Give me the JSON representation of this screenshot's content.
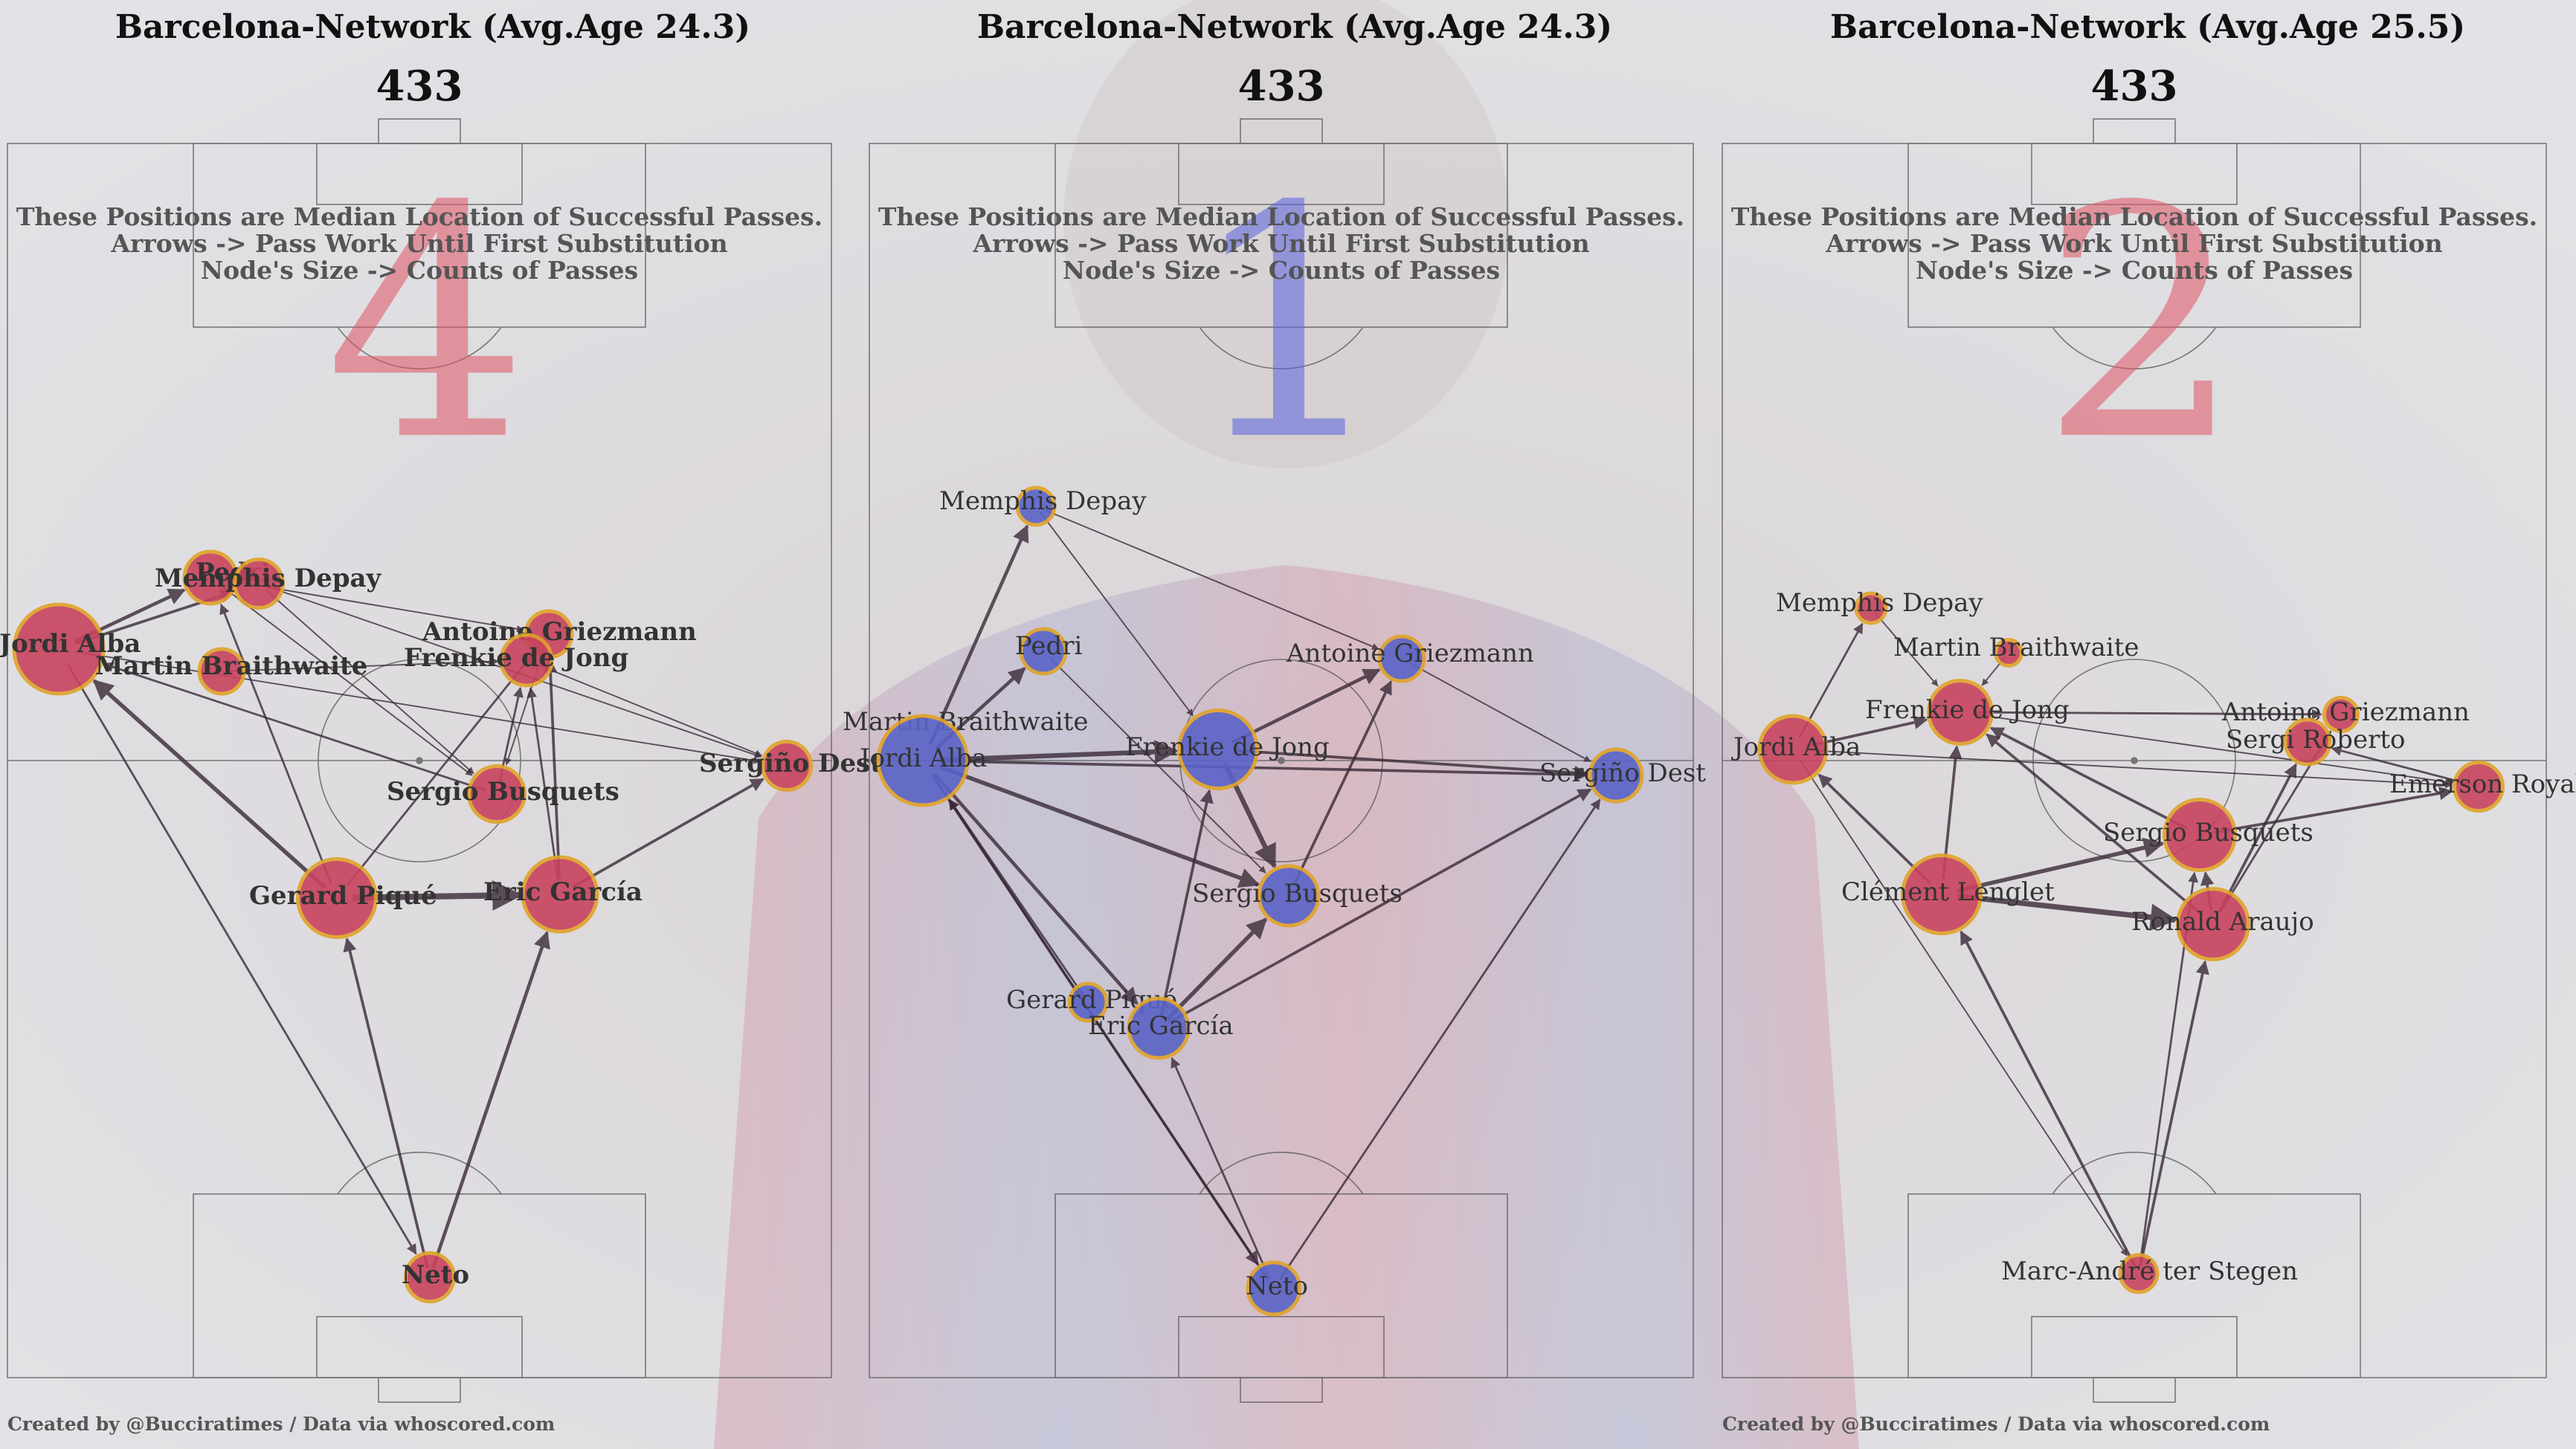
{
  "colors": {
    "red_team": "#c8435e",
    "blue_team": "#5a63c6",
    "node_ring": "#e0a32a",
    "edge": "#3a2a38"
  },
  "panels": [
    {
      "title": "Barcelona-Network (Avg.Age 24.3)",
      "formation": "433",
      "big_number": "4",
      "notes": [
        "These Positions are Median Location of Successful Passes.",
        "Arrows -> Pass Work Until First Substitution",
        "Node's Size -> Counts of Passes"
      ],
      "credit": "Created by @Bucciratimes / Data via whoscored.com",
      "node_color": "red_team",
      "bold_labels": true,
      "players": [
        {
          "name": "Jordi Alba",
          "size": 1.0
        },
        {
          "name": "Pedri",
          "size": 0.5
        },
        {
          "name": "Memphis Depay",
          "size": 0.45
        },
        {
          "name": "Martin Braithwaite",
          "size": 0.4
        },
        {
          "name": "Antoine Griezmann",
          "size": 0.42
        },
        {
          "name": "Frenkie de Jong",
          "size": 0.48
        },
        {
          "name": "Sergiño Dest",
          "size": 0.45
        },
        {
          "name": "Sergio Busquets",
          "size": 0.55
        },
        {
          "name": "Gerard Piqué",
          "size": 0.85
        },
        {
          "name": "Eric García",
          "size": 0.8
        },
        {
          "name": "Neto",
          "size": 0.45
        }
      ]
    },
    {
      "title": "Barcelona-Network (Avg.Age 24.3)",
      "formation": "433",
      "big_number": "1",
      "notes": [
        "These Positions are Median Location of Successful Passes.",
        "Arrows -> Pass Work Until First Substitution",
        "Node's Size -> Counts of Passes"
      ],
      "credit": "",
      "node_color": "blue_team",
      "bold_labels": false,
      "players": [
        {
          "name": "Memphis Depay",
          "size": 0.3
        },
        {
          "name": "Pedri",
          "size": 0.4
        },
        {
          "name": "Antoine Griezmann",
          "size": 0.4
        },
        {
          "name": "Martin Braithwaite",
          "size": 0.0
        },
        {
          "name": "Jordi Alba",
          "size": 1.0
        },
        {
          "name": "Frenkie de Jong",
          "size": 0.85
        },
        {
          "name": "Sergiño Dest",
          "size": 0.5
        },
        {
          "name": "Sergio Busquets",
          "size": 0.6
        },
        {
          "name": "Gerard Piqué",
          "size": 0.3
        },
        {
          "name": "Eric García",
          "size": 0.6
        },
        {
          "name": "Neto",
          "size": 0.5
        }
      ]
    },
    {
      "title": "Barcelona-Network (Avg.Age 25.5)",
      "formation": "433",
      "big_number": "2",
      "notes": [
        "These Positions are Median Location of Successful Passes.",
        "Arrows -> Pass Work Until First Substitution",
        "Node's Size -> Counts of Passes"
      ],
      "credit": "Created by @Bucciratimes / Data via whoscored.com",
      "node_color": "red_team",
      "bold_labels": false,
      "players": [
        {
          "name": "Memphis Depay",
          "size": 0.2
        },
        {
          "name": "Martin Braithwaite",
          "size": 0.15
        },
        {
          "name": "Frenkie de Jong",
          "size": 0.65
        },
        {
          "name": "Jordi Alba",
          "size": 0.7
        },
        {
          "name": "Antoine Griezmann",
          "size": 0.25
        },
        {
          "name": "Sergi Roberto",
          "size": 0.4
        },
        {
          "name": "Emerson Royal",
          "size": 0.45
        },
        {
          "name": "Sergio Busquets",
          "size": 0.75
        },
        {
          "name": "Clément Lenglet",
          "size": 0.85
        },
        {
          "name": "Ronald Araujo",
          "size": 0.75
        },
        {
          "name": "Marc-André ter Stegen",
          "size": 0.3
        }
      ]
    }
  ]
}
